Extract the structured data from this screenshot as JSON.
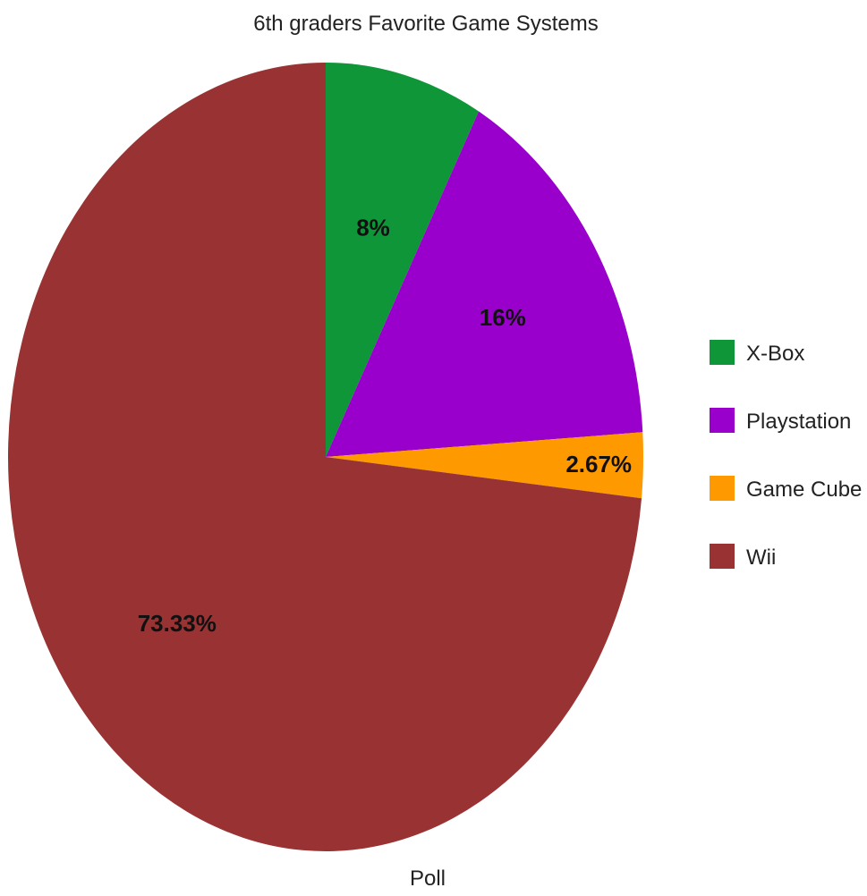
{
  "chart_data": {
    "type": "pie",
    "title": "6th graders Favorite Game Systems",
    "xlabel": "Poll",
    "categories": [
      "X-Box",
      "Playstation",
      "Game Cube",
      "Wii"
    ],
    "values": [
      8,
      16,
      2.67,
      73.33
    ],
    "labels": [
      "8%",
      "16%",
      "2.67%",
      "73.33%"
    ],
    "colors": [
      "#0f9639",
      "#9900cc",
      "#ff9900",
      "#993333"
    ],
    "start_angle": "12 o'clock",
    "direction": "clockwise",
    "legend": "right"
  }
}
